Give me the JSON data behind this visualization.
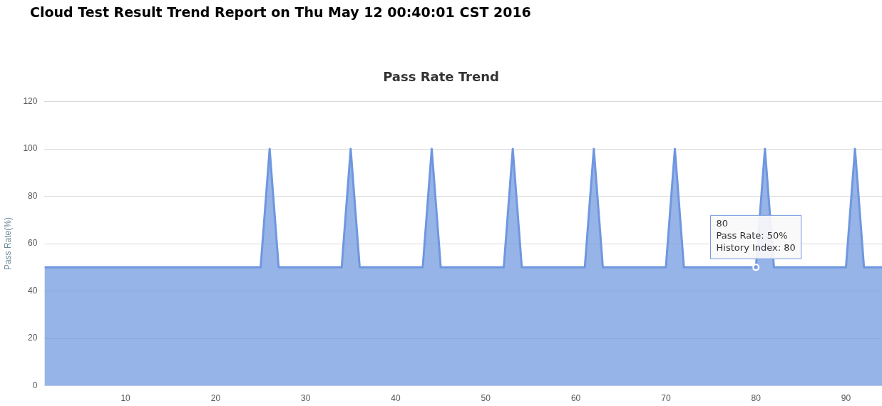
{
  "chart_data": {
    "type": "area",
    "title": "Cloud Test Result Trend Report on Thu May 12 00:40:01 CST 2016",
    "subtitle": "Pass Rate Trend",
    "ylabel": "Pass Rate(%)",
    "x": [
      1,
      2,
      3,
      4,
      5,
      6,
      7,
      8,
      9,
      10,
      11,
      12,
      13,
      14,
      15,
      16,
      17,
      18,
      19,
      20,
      21,
      22,
      23,
      24,
      25,
      26,
      27,
      28,
      29,
      30,
      31,
      32,
      33,
      34,
      35,
      36,
      37,
      38,
      39,
      40,
      41,
      42,
      43,
      44,
      45,
      46,
      47,
      48,
      49,
      50,
      51,
      52,
      53,
      54,
      55,
      56,
      57,
      58,
      59,
      60,
      61,
      62,
      63,
      64,
      65,
      66,
      67,
      68,
      69,
      70,
      71,
      72,
      73,
      74,
      75,
      76,
      77,
      78,
      79,
      80,
      81,
      82,
      83,
      84,
      85,
      86,
      87,
      88,
      89,
      90,
      91,
      92,
      93,
      94
    ],
    "series": [
      {
        "color": "#6f97df",
        "values": [
          50,
          50,
          50,
          50,
          50,
          50,
          50,
          50,
          50,
          50,
          50,
          50,
          50,
          50,
          50,
          50,
          50,
          50,
          50,
          50,
          50,
          50,
          50,
          50,
          50,
          100,
          50,
          50,
          50,
          50,
          50,
          50,
          50,
          50,
          100,
          50,
          50,
          50,
          50,
          50,
          50,
          50,
          50,
          100,
          50,
          50,
          50,
          50,
          50,
          50,
          50,
          50,
          100,
          50,
          50,
          50,
          50,
          50,
          50,
          50,
          50,
          100,
          50,
          50,
          50,
          50,
          50,
          50,
          50,
          50,
          100,
          50,
          50,
          50,
          50,
          50,
          50,
          50,
          50,
          50,
          100,
          50,
          50,
          50,
          50,
          50,
          50,
          50,
          50,
          50,
          100,
          50,
          50,
          50
        ]
      }
    ],
    "xlim": [
      1,
      94
    ],
    "xticks": [
      10,
      20,
      30,
      40,
      50,
      60,
      70,
      80,
      90
    ],
    "ylim": [
      0,
      120
    ],
    "yticks": [
      0,
      20,
      40,
      60,
      80,
      100,
      120
    ],
    "grid": "y",
    "legend": false,
    "marker": "none",
    "annotations": [
      {
        "text": "80\nPass Rate: 50%\nHistory Index: 80",
        "x": 80,
        "y": 50
      }
    ]
  }
}
